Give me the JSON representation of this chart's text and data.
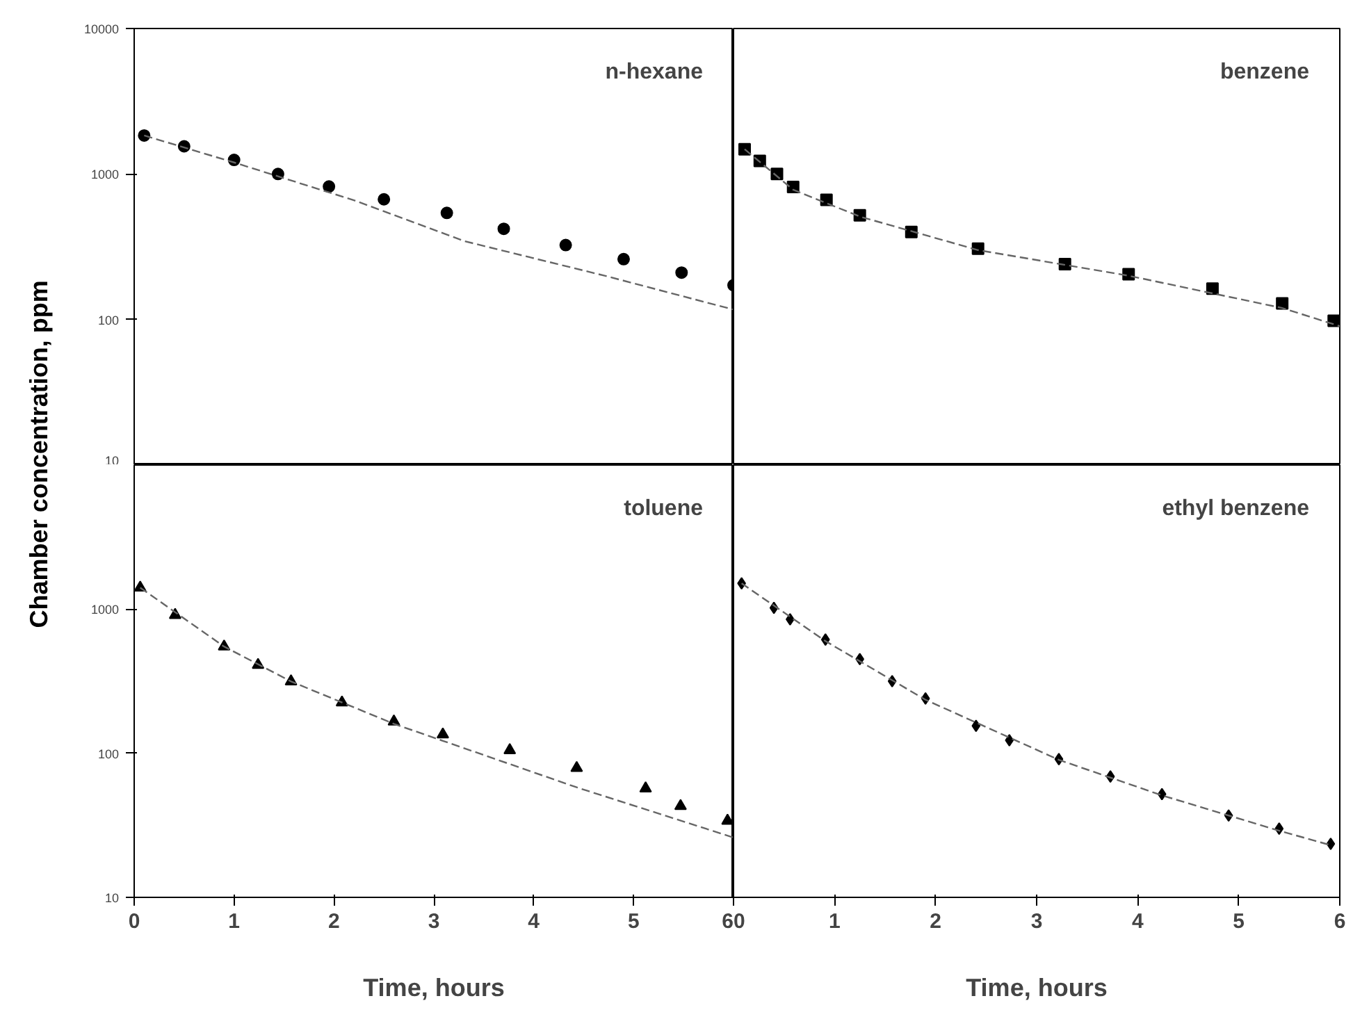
{
  "chart_data": [
    {
      "type": "scatter",
      "title": "n-hexane",
      "ylabel": "Chamber concentration, ppm",
      "log": true,
      "xlim": [
        0,
        6
      ],
      "xticks": [
        0,
        1,
        2,
        3,
        4,
        5,
        6
      ],
      "ylim": [
        10,
        10000
      ],
      "yticks": [
        10,
        100,
        1000,
        10000
      ],
      "tick_labels": "y",
      "grid": false,
      "series": [
        {
          "marker": "circle",
          "color": "#000000",
          "x": [
            0.1,
            0.5,
            1.0,
            1.44,
            1.95,
            2.5,
            3.13,
            3.7,
            4.32,
            4.9,
            5.48,
            6.0
          ],
          "values": [
            1840,
            1550,
            1250,
            1000,
            820,
            670,
            540,
            420,
            325,
            260,
            210,
            172
          ]
        },
        {
          "type": "line",
          "line_style": "dashed",
          "color": "#666666",
          "x": [
            0.1,
            1.0,
            2.2,
            3.31,
            4.71,
            6.0
          ],
          "values": [
            1840,
            1200,
            660,
            345,
            200,
            117
          ]
        }
      ]
    },
    {
      "type": "scatter",
      "title": "benzene",
      "log": true,
      "xlim": [
        0,
        6
      ],
      "xticks": [
        0,
        1,
        2,
        3,
        4,
        5,
        6
      ],
      "ylim": [
        10,
        10000
      ],
      "yticks": [
        10,
        100,
        1000,
        10000
      ],
      "tick_labels": false,
      "grid": false,
      "series": [
        {
          "marker": "square",
          "color": "#000000",
          "x": [
            0.11,
            0.26,
            0.43,
            0.59,
            0.92,
            1.25,
            1.76,
            2.42,
            3.28,
            3.91,
            4.74,
            5.43,
            5.94
          ],
          "values": [
            1480,
            1230,
            1000,
            815,
            665,
            520,
            400,
            307,
            240,
            205,
            163,
            129,
            98
          ]
        },
        {
          "type": "line",
          "line_style": "dashed",
          "color": "#666666",
          "x": [
            0.11,
            0.59,
            1.25,
            2.42,
            3.91,
            5.43,
            6.0
          ],
          "values": [
            1480,
            780,
            510,
            300,
            200,
            120,
            90
          ]
        }
      ]
    },
    {
      "type": "scatter",
      "title": "toluene",
      "xlabel": "Time, hours",
      "log": true,
      "xlim": [
        0,
        6
      ],
      "xticks": [
        0,
        1,
        2,
        3,
        4,
        5,
        6
      ],
      "ylim": [
        10,
        10000
      ],
      "yticks": [
        10,
        100,
        1000
      ],
      "grid": false,
      "series": [
        {
          "marker": "triangle",
          "color": "#000000",
          "x": [
            0.06,
            0.41,
            0.9,
            1.24,
            1.57,
            2.08,
            2.6,
            3.09,
            3.76,
            4.43,
            5.12,
            5.47,
            5.94
          ],
          "values": [
            1410,
            910,
            550,
            410,
            315,
            225,
            166,
            135,
            105,
            79,
            57,
            43,
            34
          ]
        },
        {
          "type": "line",
          "line_style": "dashed",
          "color": "#666666",
          "x": [
            0.06,
            0.9,
            1.57,
            2.6,
            3.09,
            4.43,
            6.0
          ],
          "values": [
            1410,
            550,
            315,
            160,
            122,
            58,
            26
          ]
        }
      ]
    },
    {
      "type": "scatter",
      "title": "ethyl benzene",
      "xlabel": "Time, hours",
      "log": true,
      "xlim": [
        0,
        6
      ],
      "xticks": [
        0,
        1,
        2,
        3,
        4,
        5,
        6
      ],
      "ylim": [
        10,
        10000
      ],
      "yticks": [
        10,
        100,
        1000
      ],
      "tick_labels": "x",
      "grid": false,
      "series": [
        {
          "marker": "diamond",
          "color": "#000000",
          "x": [
            0.08,
            0.4,
            0.56,
            0.91,
            1.25,
            1.57,
            1.9,
            2.4,
            2.73,
            3.22,
            3.73,
            4.24,
            4.9,
            5.4,
            5.91
          ],
          "values": [
            1510,
            1020,
            850,
            615,
            450,
            316,
            240,
            155,
            123,
            91,
            69,
            52,
            37,
            30,
            23.5
          ]
        },
        {
          "type": "line",
          "line_style": "dashed",
          "color": "#666666",
          "x": [
            0.08,
            0.91,
            1.9,
            3.22,
            4.24,
            5.4,
            5.91
          ],
          "values": [
            1510,
            600,
            235,
            90,
            51,
            29,
            23
          ]
        }
      ]
    }
  ]
}
